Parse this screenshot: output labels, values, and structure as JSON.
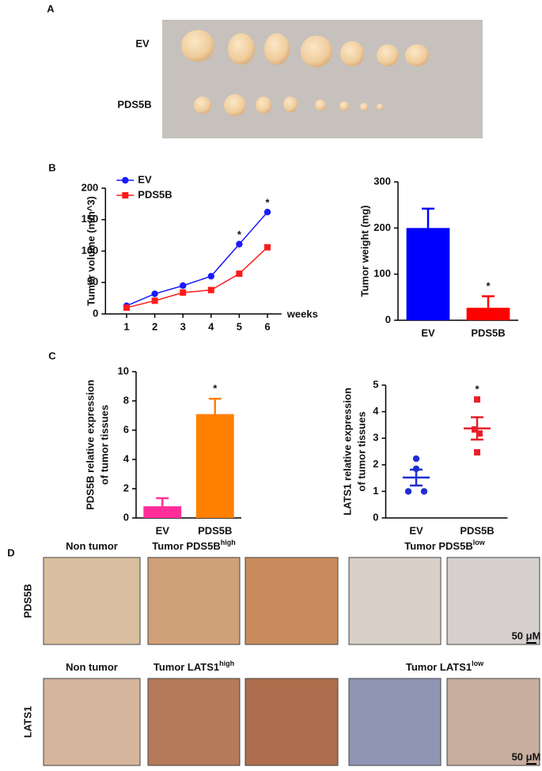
{
  "panel_labels": [
    "A",
    "B",
    "C",
    "D"
  ],
  "panel_a": {
    "row_labels": [
      "EV",
      "PDS5B"
    ]
  },
  "panel_d": {
    "rows": [
      {
        "label": "PDS5B",
        "headers": [
          {
            "text": "Non tumor"
          },
          {
            "text": "Tumor PDS5B",
            "sup": "high"
          },
          {
            "text": "Tumor PDS5B",
            "sup": "low"
          }
        ]
      },
      {
        "label": "LATS1",
        "headers": [
          {
            "text": "Non tumor"
          },
          {
            "text": "Tumor LATS1",
            "sup": "high"
          },
          {
            "text": "Tumor LATS1",
            "sup": "low"
          }
        ]
      }
    ],
    "scale_bar": "50 μM"
  },
  "chart_data": [
    {
      "type": "line",
      "ylabel": [
        "Tumor volume (mm^3)"
      ],
      "xlabel": "weeks",
      "x": [
        1,
        2,
        3,
        4,
        5,
        6
      ],
      "series": [
        {
          "name": "EV",
          "color": "#1a1aff",
          "marker": "circle",
          "values": [
            13,
            32,
            45,
            60,
            111,
            162
          ]
        },
        {
          "name": "PDS5B",
          "color": "#ff1a1a",
          "marker": "square",
          "values": [
            10,
            21,
            34,
            38,
            64,
            106
          ]
        }
      ],
      "xlim": [
        0.25,
        6.5
      ],
      "xticks": [
        1,
        2,
        3,
        4,
        5,
        6
      ],
      "ylim": [
        0,
        200
      ],
      "yticks": [
        0,
        50,
        100,
        150,
        200
      ],
      "legend": "upper left",
      "annotations": [
        {
          "text": "*",
          "x": 5
        },
        {
          "text": "*",
          "x": 6
        }
      ]
    },
    {
      "type": "bar",
      "ylabel": [
        "Tumor weight (mg)"
      ],
      "categories": [
        "EV",
        "PDS5B"
      ],
      "values": [
        200,
        27
      ],
      "errors": [
        42,
        25
      ],
      "colors": [
        "#0000ff",
        "#ff0000"
      ],
      "ylim": [
        0,
        300
      ],
      "yticks": [
        0,
        100,
        200,
        300
      ],
      "annotations": [
        {
          "text": "*",
          "category": "PDS5B"
        }
      ]
    },
    {
      "type": "bar",
      "ylabel": [
        "PDS5B relative expression",
        "of tumor tissues"
      ],
      "categories": [
        "EV",
        "PDS5B"
      ],
      "values": [
        0.8,
        7.1
      ],
      "errors": [
        0.55,
        1.05
      ],
      "colors": [
        "#ff2e9a",
        "#ff8000"
      ],
      "ylim": [
        0,
        10
      ],
      "yticks": [
        0,
        2,
        4,
        6,
        8,
        10
      ],
      "annotations": [
        {
          "text": "*",
          "category": "PDS5B"
        }
      ]
    },
    {
      "type": "dot",
      "ylabel": [
        "LATS1 relative expression",
        "of tumor tissues"
      ],
      "categories": [
        "EV",
        "PDS5B"
      ],
      "points": [
        [
          2.23,
          1.85,
          1.0,
          1.0
        ],
        [
          4.46,
          3.33,
          3.18,
          2.47
        ]
      ],
      "means": [
        1.52,
        3.37
      ],
      "errors": [
        0.3,
        0.42
      ],
      "colors": [
        "#1f2fd0",
        "#e8202a"
      ],
      "markers": [
        "circle",
        "square"
      ],
      "ylim": [
        0,
        5
      ],
      "yticks": [
        0,
        1,
        2,
        3,
        4,
        5
      ],
      "annotations": [
        {
          "text": "*",
          "category": "PDS5B"
        }
      ]
    }
  ]
}
